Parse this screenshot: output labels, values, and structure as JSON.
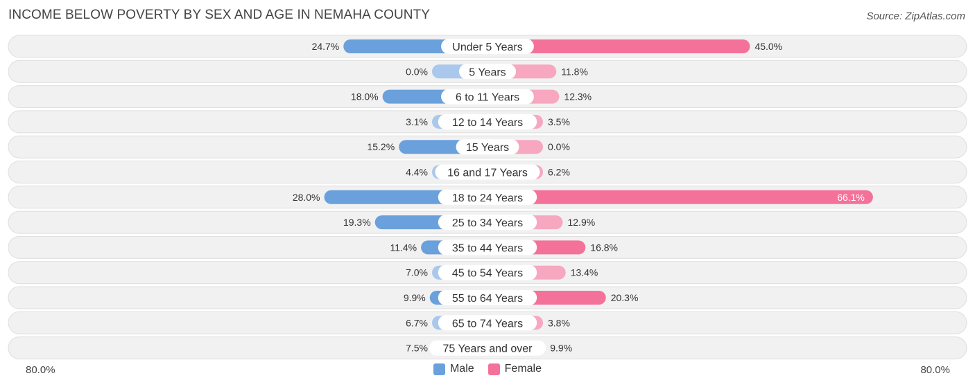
{
  "title": "INCOME BELOW POVERTY BY SEX AND AGE IN NEMAHA COUNTY",
  "source": "Source: ZipAtlas.com",
  "colors": {
    "male_strong": "#6aa0dc",
    "male_light": "#a9c8ec",
    "female_strong": "#f4729a",
    "female_light": "#f7a7c0",
    "row_bg": "#f1f1f1",
    "row_border": "#dedede"
  },
  "axis": {
    "left_label": "80.0%",
    "right_label": "80.0%"
  },
  "legend": [
    {
      "name": "Male",
      "color": "#6aa0dc"
    },
    {
      "name": "Female",
      "color": "#f4729a"
    }
  ],
  "chart_data": {
    "type": "bar",
    "orientation": "horizontal-diverging",
    "xlim": [
      -80,
      80
    ],
    "categories": [
      "Under 5 Years",
      "5 Years",
      "6 to 11 Years",
      "12 to 14 Years",
      "15 Years",
      "16 and 17 Years",
      "18 to 24 Years",
      "25 to 34 Years",
      "35 to 44 Years",
      "45 to 54 Years",
      "55 to 64 Years",
      "65 to 74 Years",
      "75 Years and over"
    ],
    "series": [
      {
        "name": "Male",
        "values": [
          24.7,
          0.0,
          18.0,
          3.1,
          15.2,
          4.4,
          28.0,
          19.3,
          11.4,
          7.0,
          9.9,
          6.7,
          7.5
        ],
        "labels": [
          "24.7%",
          "0.0%",
          "18.0%",
          "3.1%",
          "15.2%",
          "4.4%",
          "28.0%",
          "19.3%",
          "11.4%",
          "7.0%",
          "9.9%",
          "6.7%",
          "7.5%"
        ]
      },
      {
        "name": "Female",
        "values": [
          45.0,
          11.8,
          12.3,
          3.5,
          0.0,
          6.2,
          66.1,
          12.9,
          16.8,
          13.4,
          20.3,
          3.8,
          9.9
        ],
        "labels": [
          "45.0%",
          "11.8%",
          "12.3%",
          "3.5%",
          "0.0%",
          "6.2%",
          "66.1%",
          "12.9%",
          "16.8%",
          "13.4%",
          "20.3%",
          "3.8%",
          "9.9%"
        ]
      }
    ],
    "legend_position": "bottom-center",
    "grid": false
  }
}
